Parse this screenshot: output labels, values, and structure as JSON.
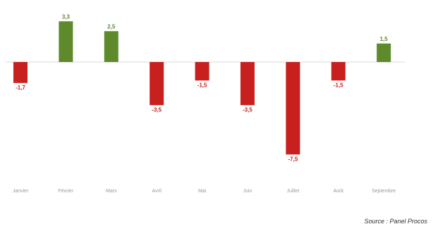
{
  "chart_data": {
    "type": "bar",
    "categories": [
      "Janvier",
      "Février",
      "Mars",
      "Avril",
      "Mai",
      "Juin",
      "Juillet",
      "Août",
      "Septembre"
    ],
    "values": [
      -1.7,
      3.3,
      2.5,
      -3.5,
      -1.5,
      -3.5,
      -7.5,
      -1.5,
      1.5
    ],
    "value_labels": [
      "-1,7",
      "3,3",
      "2,5",
      "-3,5",
      "-1,5",
      "-3,5",
      "-7,5",
      "-1,5",
      "1,5"
    ],
    "ylim": [
      -7.5,
      3.3
    ],
    "grid": false,
    "legend": "none",
    "colors": {
      "positive": "#5e8a2c",
      "negative": "#c8201e",
      "axis": "#d9d9d9",
      "category_text": "#9a9a9a"
    }
  },
  "source": "Source : Panel Procos"
}
